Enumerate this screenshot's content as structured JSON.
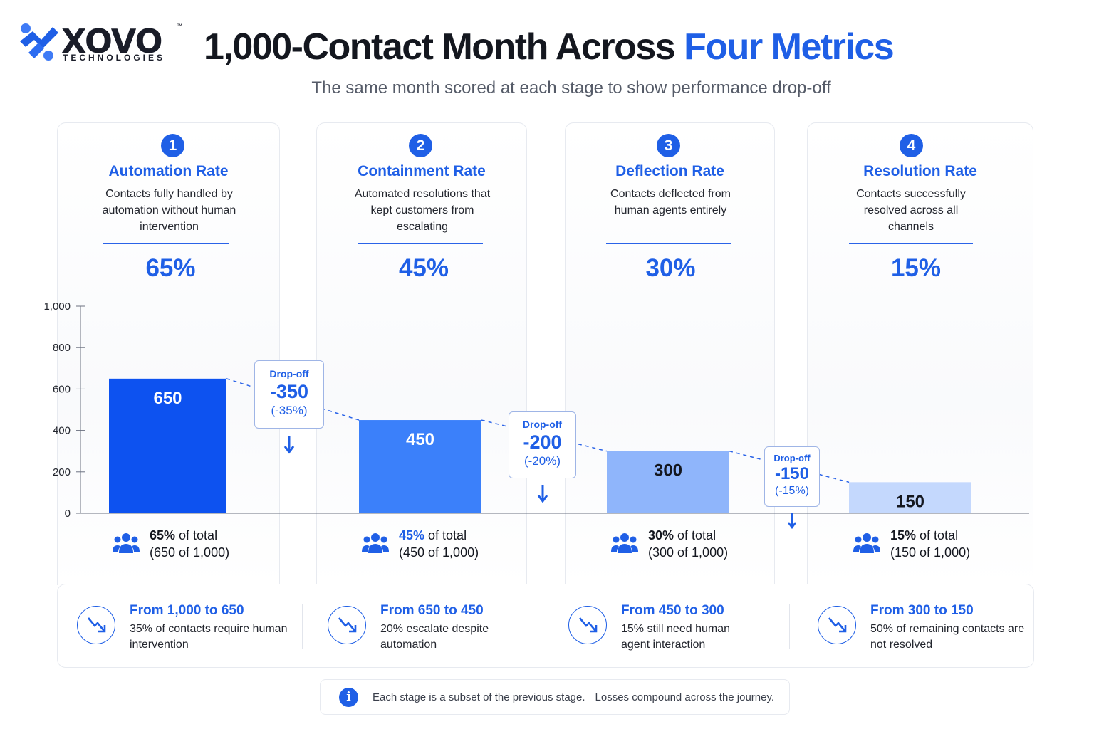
{
  "header": {
    "logo": {
      "wordmark": "XOVO",
      "tm": "™",
      "subtitle": "TECHNOLOGIES"
    },
    "title_main": "1,000-Contact Month Across ",
    "title_accent": "Four Metrics",
    "subtitle": "The same month scored at each stage to show performance drop-off"
  },
  "colors": {
    "accent": "#1f5fe6",
    "bar_1": "#0d52f0",
    "bar_2": "#3b80fa",
    "bar_3": "#8fb5fb",
    "bar_4": "#c4d8fd"
  },
  "stages": [
    {
      "number": "1",
      "title": "Automation Rate",
      "description": "Contacts fully handled by automation without human intervention",
      "percent": "65%",
      "total_pct": "65%",
      "total_rest": " of total",
      "total_detail": "(650 of 1,000)"
    },
    {
      "number": "2",
      "title": "Containment Rate",
      "description": "Automated resolutions that kept customers from escalating",
      "percent": "45%",
      "total_pct": "45%",
      "total_rest": " of total",
      "total_detail": "(450 of 1,000)"
    },
    {
      "number": "3",
      "title": "Deflection Rate",
      "description": "Contacts deflected from human agents entirely",
      "percent": "30%",
      "total_pct": "30%",
      "total_rest": " of total",
      "total_detail": "(300 of 1,000)"
    },
    {
      "number": "4",
      "title": "Resolution Rate",
      "description": "Contacts successfully resolved across all channels",
      "percent": "15%",
      "total_pct": "15%",
      "total_rest": " of total",
      "total_detail": "(150 of 1,000)"
    }
  ],
  "dropoffs": [
    {
      "label": "Drop-off",
      "value": "-350",
      "percent": "(-35%)"
    },
    {
      "label": "Drop-off",
      "value": "-200",
      "percent": "(-20%)"
    },
    {
      "label": "Drop-off",
      "value": "-150",
      "percent": "(-15%)"
    }
  ],
  "chart_data": {
    "type": "bar",
    "categories": [
      "Automation Rate",
      "Containment Rate",
      "Deflection Rate",
      "Resolution Rate"
    ],
    "values": [
      650,
      450,
      300,
      150
    ],
    "value_labels": [
      "650",
      "450",
      "300",
      "150"
    ],
    "ylim": [
      0,
      1000
    ],
    "yticks": [
      0,
      200,
      400,
      600,
      800,
      1000
    ],
    "ytick_labels": [
      "0",
      "200",
      "400",
      "600",
      "800",
      "1,000"
    ],
    "grid": false,
    "connector": "dashed"
  },
  "transitions": [
    {
      "heading": "From 1,000 to 650",
      "text": "35% of contacts require human intervention"
    },
    {
      "heading": "From 650 to 450",
      "text": "20% escalate despite automation"
    },
    {
      "heading": "From 450 to 300",
      "text": "15% still need human agent interaction"
    },
    {
      "heading": "From 300 to 150",
      "text": "50% of remaining contacts are not resolved"
    }
  ],
  "footnote": {
    "icon": "info-icon",
    "text_1": "Each stage is a subset of the previous stage.",
    "text_2": "Losses compound across the journey."
  }
}
